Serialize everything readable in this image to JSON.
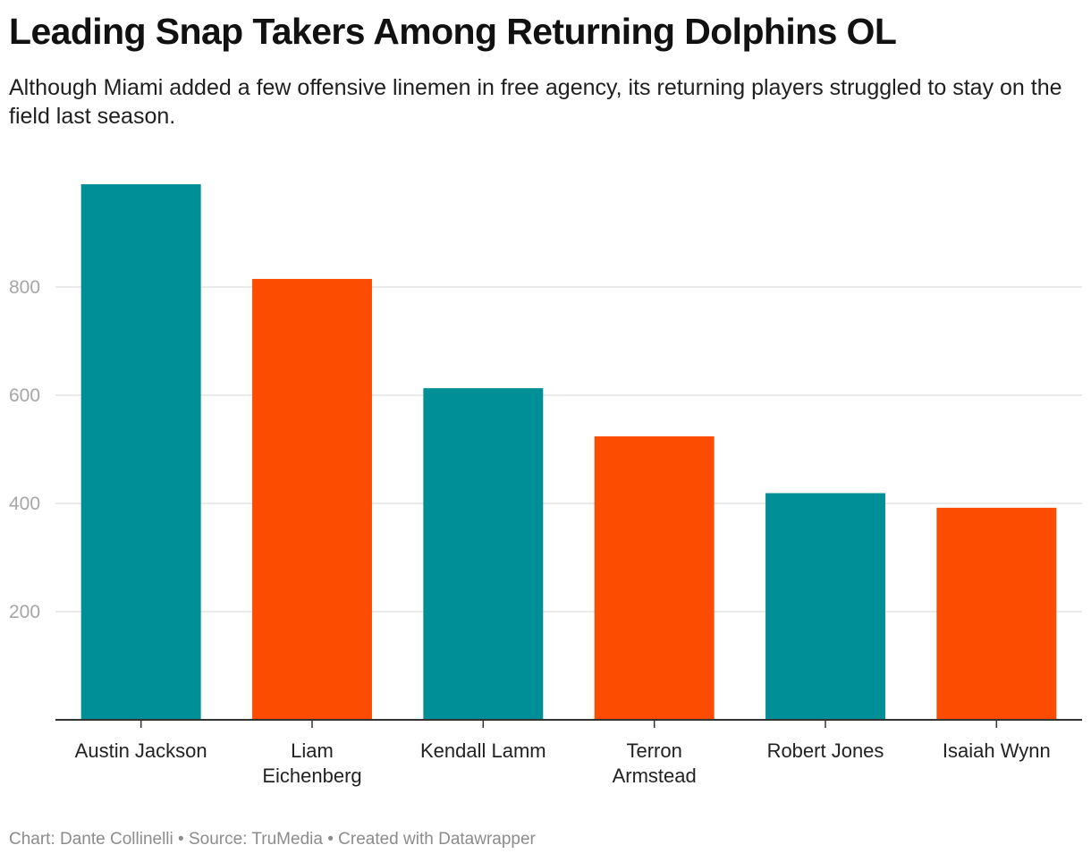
{
  "title": "Leading Snap Takers Among Returning Dolphins OL",
  "subtitle": "Although Miami added a few offensive linemen in free agency, its returning players struggled to stay on the field last season.",
  "footer": {
    "credit": "Chart: Dante Collinelli",
    "separator": " • ",
    "source": "Source: TruMedia",
    "tool": "Created with Datawrapper"
  },
  "colors": {
    "aqua": "#008E97",
    "orange": "#FC4C02",
    "gridline": "#e3e3e3",
    "baseline": "#333333",
    "tick_text": "#a6a6a6"
  },
  "chart_data": {
    "type": "bar",
    "title": "Leading Snap Takers Among Returning Dolphins OL",
    "xlabel": "",
    "ylabel": "",
    "ylim": [
      0,
      1000
    ],
    "yticks": [
      200,
      400,
      600,
      800
    ],
    "grid": true,
    "legend": "none",
    "categories": [
      [
        "Austin Jackson"
      ],
      [
        "Liam",
        "Eichenberg"
      ],
      [
        "Kendall Lamm"
      ],
      [
        "Terron",
        "Armstead"
      ],
      [
        "Robert Jones"
      ],
      [
        "Isaiah Wynn"
      ]
    ],
    "values": [
      990,
      815,
      613,
      524,
      419,
      392
    ],
    "bar_colors": [
      "#008E97",
      "#FC4C02",
      "#008E97",
      "#FC4C02",
      "#008E97",
      "#FC4C02"
    ]
  }
}
